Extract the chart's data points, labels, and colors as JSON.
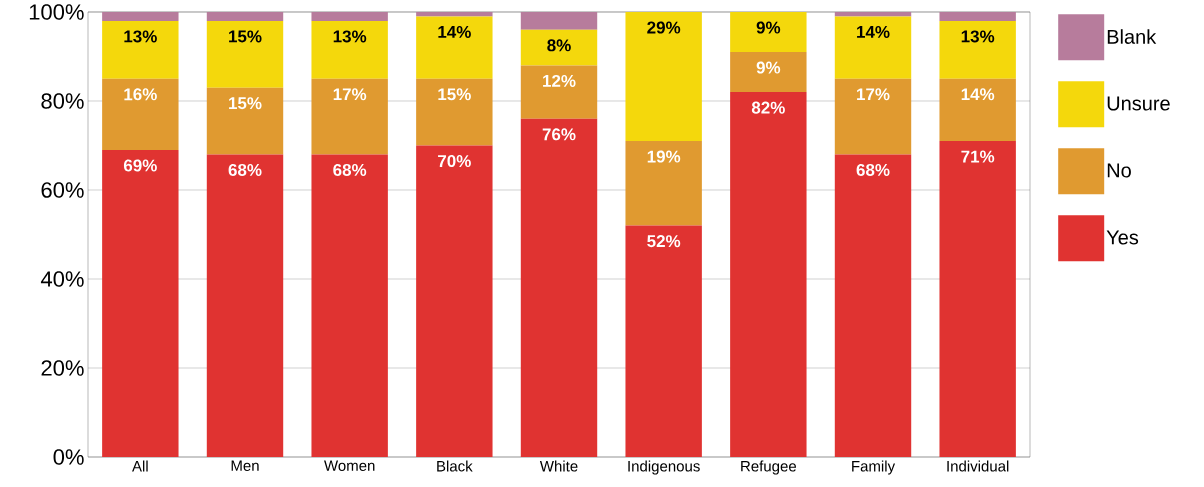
{
  "chart_data": {
    "type": "bar",
    "stacked": true,
    "categories": [
      "All",
      "Men",
      "Women",
      "Black",
      "White",
      "Indigenous",
      "Refugee",
      "Family",
      "Individual"
    ],
    "ylim": [
      0,
      100
    ],
    "yticks": [
      {
        "value": 0,
        "label": "0%"
      },
      {
        "value": 20,
        "label": "20%"
      },
      {
        "value": 40,
        "label": "40%"
      },
      {
        "value": 60,
        "label": "60%"
      },
      {
        "value": 80,
        "label": "80%"
      },
      {
        "value": 100,
        "label": "100%"
      }
    ],
    "grid": "y",
    "legend": "right",
    "series": [
      {
        "name": "Yes",
        "color": "#e03331",
        "values": [
          69,
          68,
          68,
          70,
          76,
          52,
          82,
          68,
          71
        ],
        "value_labels": [
          "69%",
          "68%",
          "68%",
          "70%",
          "76%",
          "52%",
          "82%",
          "68%",
          "71%"
        ]
      },
      {
        "name": "No",
        "color": "#e09a30",
        "values": [
          16,
          15,
          17,
          15,
          12,
          19,
          9,
          17,
          14
        ],
        "value_labels": [
          "16%",
          "15%",
          "17%",
          "15%",
          "12%",
          "19%",
          "9%",
          "17%",
          "14%"
        ]
      },
      {
        "name": "Unsure",
        "color": "#f4d80c",
        "values": [
          13,
          15,
          13,
          14,
          8,
          29,
          9,
          14,
          13
        ],
        "value_labels": [
          "13%",
          "15%",
          "13%",
          "14%",
          "8%",
          "29%",
          "9%",
          "14%",
          "13%"
        ]
      },
      {
        "name": "Blank",
        "color": "#b77c9c",
        "values": [
          2,
          2,
          2,
          1,
          4,
          0,
          0,
          1,
          2
        ]
      }
    ]
  }
}
